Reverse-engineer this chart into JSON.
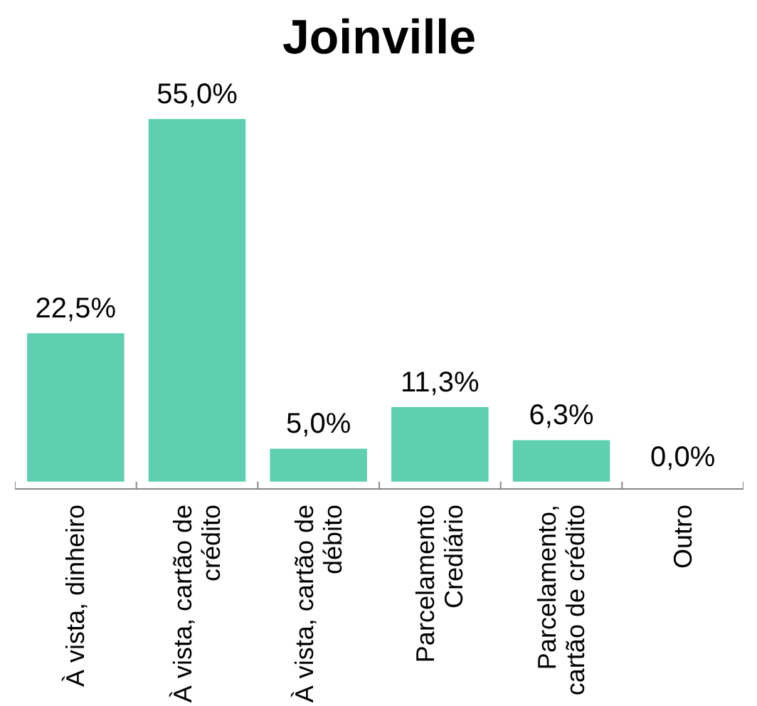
{
  "chart_data": {
    "type": "bar",
    "title": "Joinville",
    "categories": [
      "À vista, dinheiro",
      "À vista, cartão de\ncrédito",
      "À vista, cartão de\ndébito",
      "Parcelamento\nCrediário",
      "Parcelamento,\ncartão de crédito",
      "Outro"
    ],
    "values": [
      22.5,
      55.0,
      5.0,
      11.3,
      6.3,
      0.0
    ],
    "value_labels": [
      "22,5%",
      "55,0%",
      "5,0%",
      "11,3%",
      "6,3%",
      "0,0%"
    ],
    "color": "#5ecfb1",
    "grid": false
  }
}
